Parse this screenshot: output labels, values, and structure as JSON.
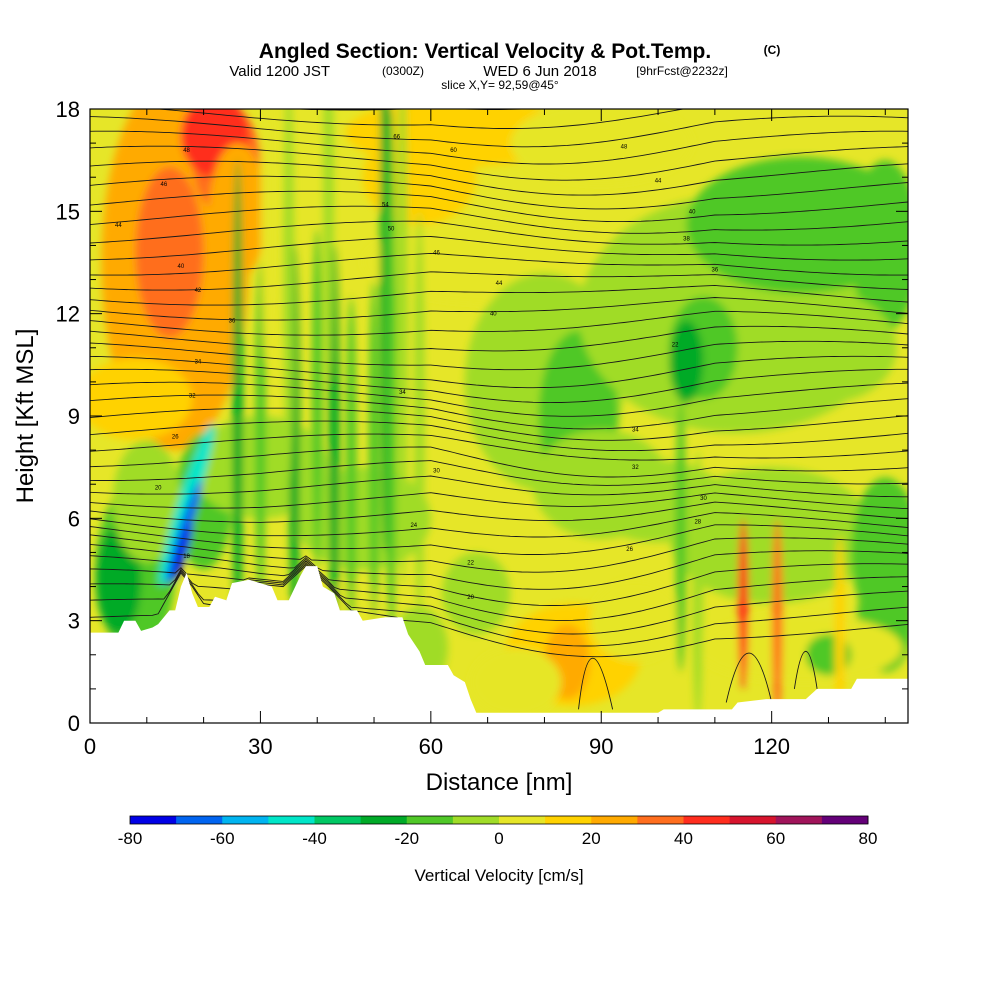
{
  "header": {
    "title": "Angled Section: Vertical Velocity & Pot.Temp.",
    "title_mark": "(C)",
    "valid_prefix": "Valid 1200 JST",
    "valid_utc": "(0300Z)",
    "valid_date": "WED 6 Jun 2018",
    "forecast": "[9hrFcst@2232z]",
    "slice": "slice X,Y= 92,59@45°"
  },
  "colorbar": {
    "label": "Vertical Velocity [cm/s]",
    "ticks": [
      "-80",
      "-60",
      "-40",
      "-20",
      "0",
      "20",
      "40",
      "60",
      "80"
    ],
    "colors": [
      "#0000e6",
      "#0064f0",
      "#00b4f0",
      "#00e6c8",
      "#00c864",
      "#00aa28",
      "#50c828",
      "#a0dc28",
      "#e6e628",
      "#ffd200",
      "#ffaa00",
      "#ff6e1e",
      "#ff2d1e",
      "#d7142d",
      "#a0145a",
      "#640078"
    ]
  },
  "chart_data": {
    "type": "heatmap",
    "title": "Angled Section: Vertical Velocity & Pot.Temp.",
    "xlabel": "Distance [nm]",
    "ylabel": "Height [Kft MSL]",
    "xlim": [
      0,
      144
    ],
    "ylim": [
      0,
      18
    ],
    "x_ticks": [
      0,
      30,
      60,
      90,
      120
    ],
    "y_ticks": [
      0,
      3,
      6,
      9,
      12,
      15,
      18
    ],
    "x_tick_labels": [
      "0",
      "30",
      "60",
      "90",
      "120"
    ],
    "y_tick_labels": [
      "0",
      "3",
      "6",
      "9",
      "12",
      "15",
      "18"
    ],
    "shaded_field": "Vertical Velocity [cm/s]",
    "shading_levels": [
      -80,
      -70,
      -60,
      -50,
      -40,
      -30,
      -20,
      -10,
      0,
      10,
      20,
      30,
      40,
      50,
      60,
      70,
      80
    ],
    "contour_field": "Pot.Temp.",
    "contour_labels": [
      {
        "x": 17,
        "y": 16.8,
        "text": "48"
      },
      {
        "x": 13,
        "y": 15.8,
        "text": "46"
      },
      {
        "x": 5,
        "y": 14.6,
        "text": "44"
      },
      {
        "x": 16,
        "y": 13.4,
        "text": "40"
      },
      {
        "x": 19,
        "y": 12.7,
        "text": "42"
      },
      {
        "x": 25,
        "y": 11.8,
        "text": "36"
      },
      {
        "x": 19,
        "y": 10.6,
        "text": "34"
      },
      {
        "x": 18,
        "y": 9.6,
        "text": "32"
      },
      {
        "x": 15,
        "y": 8.4,
        "text": "26"
      },
      {
        "x": 12,
        "y": 6.9,
        "text": "20"
      },
      {
        "x": 17,
        "y": 4.9,
        "text": "18"
      },
      {
        "x": 54,
        "y": 17.2,
        "text": "66"
      },
      {
        "x": 64,
        "y": 16.8,
        "text": "60"
      },
      {
        "x": 94,
        "y": 16.9,
        "text": "48"
      },
      {
        "x": 100,
        "y": 15.9,
        "text": "44"
      },
      {
        "x": 106,
        "y": 15.0,
        "text": "40"
      },
      {
        "x": 105,
        "y": 14.2,
        "text": "38"
      },
      {
        "x": 110,
        "y": 13.3,
        "text": "36"
      },
      {
        "x": 103,
        "y": 11.1,
        "text": "22"
      },
      {
        "x": 52,
        "y": 15.2,
        "text": "54"
      },
      {
        "x": 53,
        "y": 14.5,
        "text": "50"
      },
      {
        "x": 61,
        "y": 13.8,
        "text": "46"
      },
      {
        "x": 72,
        "y": 12.9,
        "text": "44"
      },
      {
        "x": 71,
        "y": 12.0,
        "text": "40"
      },
      {
        "x": 55,
        "y": 9.7,
        "text": "34"
      },
      {
        "x": 96,
        "y": 8.6,
        "text": "34"
      },
      {
        "x": 61,
        "y": 7.4,
        "text": "30"
      },
      {
        "x": 96,
        "y": 7.5,
        "text": "32"
      },
      {
        "x": 108,
        "y": 6.6,
        "text": "30"
      },
      {
        "x": 107,
        "y": 5.9,
        "text": "28"
      },
      {
        "x": 57,
        "y": 5.8,
        "text": "24"
      },
      {
        "x": 95,
        "y": 5.1,
        "text": "26"
      },
      {
        "x": 67,
        "y": 4.7,
        "text": "22"
      },
      {
        "x": 67,
        "y": 3.7,
        "text": "20"
      }
    ]
  }
}
